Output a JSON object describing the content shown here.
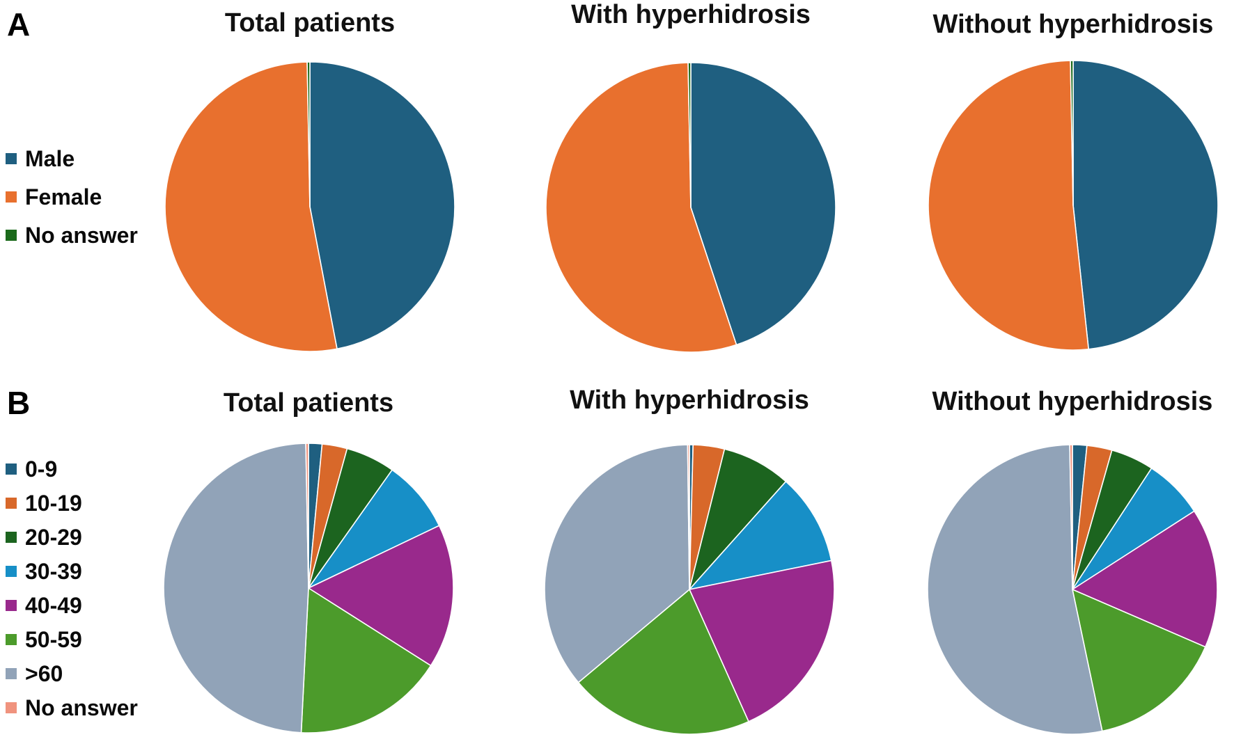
{
  "figure": {
    "panel_a_label": "A",
    "panel_b_label": "B"
  },
  "colors": {
    "male_blue": "#1F5F80",
    "female_orange": "#E8702E",
    "no_answer_green": "#1B6A1B",
    "age_0_9": "#1F5F80",
    "age_10_19": "#D8682A",
    "age_20_29": "#1C641F",
    "age_30_39": "#178FC7",
    "age_40_49": "#99298C",
    "age_50_59": "#4C9B2B",
    "age_over_60": "#91A3B8",
    "age_no_answer": "#F0937E"
  },
  "legend_a": {
    "items": [
      {
        "label": "Male",
        "color": "#1F5F80"
      },
      {
        "label": "Female",
        "color": "#E8702E"
      },
      {
        "label": "No answer",
        "color": "#1B6A1B"
      }
    ]
  },
  "legend_b": {
    "items": [
      {
        "label": "0-9",
        "color": "#1F5F80"
      },
      {
        "label": "10-19",
        "color": "#D8682A"
      },
      {
        "label": "20-29",
        "color": "#1C641F"
      },
      {
        "label": "30-39",
        "color": "#178FC7"
      },
      {
        "label": "40-49",
        "color": "#99298C"
      },
      {
        "label": "50-59",
        "color": "#4C9B2B"
      },
      {
        "label": ">60",
        "color": "#91A3B8"
      },
      {
        "label": "No answer",
        "color": "#F0937E"
      }
    ]
  },
  "chart_data": [
    {
      "id": "a-total",
      "panel": "A",
      "type": "pie",
      "title": "Total patients",
      "value_unit": "percent (estimated from slice angles)",
      "labels": [
        "Male",
        "Female",
        "No answer"
      ],
      "values": [
        47.0,
        52.7,
        0.3
      ],
      "colors": [
        "#1F5F80",
        "#E8702E",
        "#1B6A1B"
      ],
      "start_angle_deg": 0,
      "direction": "clockwise",
      "legend_position": "left"
    },
    {
      "id": "a-with",
      "panel": "A",
      "type": "pie",
      "title": "With hyperhidrosis",
      "value_unit": "percent (estimated from slice angles)",
      "labels": [
        "Male",
        "Female",
        "No answer"
      ],
      "values": [
        44.9,
        54.8,
        0.3
      ],
      "colors": [
        "#1F5F80",
        "#E8702E",
        "#1B6A1B"
      ],
      "start_angle_deg": 0,
      "direction": "clockwise",
      "legend_position": "left"
    },
    {
      "id": "a-without",
      "panel": "A",
      "type": "pie",
      "title": "Without hyperhidrosis",
      "value_unit": "percent (estimated from slice angles)",
      "labels": [
        "Male",
        "Female",
        "No answer"
      ],
      "values": [
        48.3,
        51.4,
        0.3
      ],
      "colors": [
        "#1F5F80",
        "#E8702E",
        "#1B6A1B"
      ],
      "start_angle_deg": 0,
      "direction": "clockwise",
      "legend_position": "left"
    },
    {
      "id": "b-total",
      "panel": "B",
      "type": "pie",
      "title": "Total patients",
      "value_unit": "percent (estimated from slice angles)",
      "labels": [
        "0-9",
        "10-19",
        "20-29",
        "30-39",
        "40-49",
        "50-59",
        ">60",
        "No answer"
      ],
      "values": [
        1.5,
        2.8,
        5.5,
        8.1,
        16.1,
        16.8,
        48.9,
        0.3
      ],
      "colors": [
        "#1F5F80",
        "#D8682A",
        "#1C641F",
        "#178FC7",
        "#99298C",
        "#4C9B2B",
        "#91A3B8",
        "#F0937E"
      ],
      "start_angle_deg": 0,
      "direction": "clockwise",
      "legend_position": "left"
    },
    {
      "id": "b-with",
      "panel": "B",
      "type": "pie",
      "title": "With hyperhidrosis",
      "value_unit": "percent (estimated from slice angles)",
      "labels": [
        "0-9",
        "10-19",
        "20-29",
        "30-39",
        "40-49",
        "50-59",
        ">60",
        "No answer"
      ],
      "values": [
        0.4,
        3.5,
        7.7,
        10.2,
        21.5,
        20.6,
        35.9,
        0.2
      ],
      "colors": [
        "#1F5F80",
        "#D8682A",
        "#1C641F",
        "#178FC7",
        "#99298C",
        "#4C9B2B",
        "#91A3B8",
        "#F0937E"
      ],
      "start_angle_deg": 0,
      "direction": "clockwise",
      "legend_position": "left"
    },
    {
      "id": "b-without",
      "panel": "B",
      "type": "pie",
      "title": "Without hyperhidrosis",
      "value_unit": "percent (estimated from slice angles)",
      "labels": [
        "0-9",
        "10-19",
        "20-29",
        "30-39",
        "40-49",
        "50-59",
        ">60",
        "No answer"
      ],
      "values": [
        1.6,
        2.8,
        4.8,
        6.7,
        15.6,
        15.2,
        53.0,
        0.3
      ],
      "colors": [
        "#1F5F80",
        "#D8682A",
        "#1C641F",
        "#178FC7",
        "#99298C",
        "#4C9B2B",
        "#91A3B8",
        "#F0937E"
      ],
      "start_angle_deg": 0,
      "direction": "clockwise",
      "legend_position": "left"
    }
  ]
}
